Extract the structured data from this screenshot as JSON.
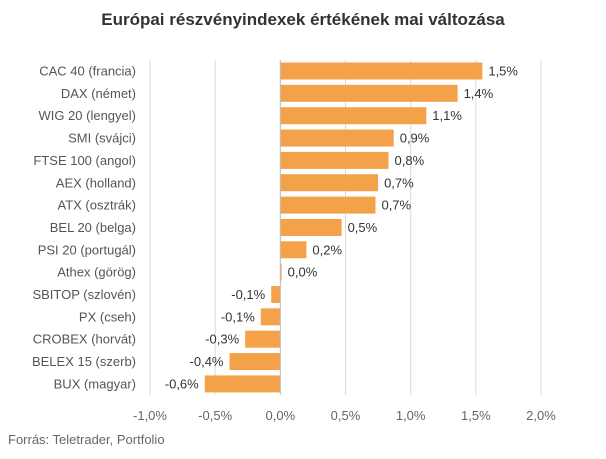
{
  "chart_data": {
    "type": "bar",
    "orientation": "horizontal",
    "title": "Európai részvényindexek értékének mai változása",
    "source": "Forrás: Teletrader, Portfolio",
    "categories": [
      "CAC 40 (francia)",
      "DAX (német)",
      "WIG 20 (lengyel)",
      "SMI (svájci)",
      "FTSE 100 (angol)",
      "AEX (holland)",
      "ATX (osztrák)",
      "BEL 20 (belga)",
      "PSI 20 (portugál)",
      "Athex (görög)",
      "SBITOP (szlovén)",
      "PX (cseh)",
      "CROBEX (horvát)",
      "BELEX 15 (szerb)",
      "BUX (magyar)"
    ],
    "values": [
      1.55,
      1.36,
      1.12,
      0.87,
      0.83,
      0.75,
      0.73,
      0.47,
      0.2,
      0.01,
      -0.07,
      -0.15,
      -0.27,
      -0.39,
      -0.58
    ],
    "value_labels": [
      "1,5%",
      "1,4%",
      "1,1%",
      "0,9%",
      "0,8%",
      "0,7%",
      "0,7%",
      "0,5%",
      "0,2%",
      "0,0%",
      "-0,1%",
      "-0,1%",
      "-0,3%",
      "-0,4%",
      "-0,6%"
    ],
    "xlim": [
      -1.0,
      2.0
    ],
    "xticks": [
      -1.0,
      -0.5,
      0.0,
      0.5,
      1.0,
      1.5,
      2.0
    ],
    "xtick_labels": [
      "-1,0%",
      "-0,5%",
      "0,0%",
      "0,5%",
      "1,0%",
      "1,5%",
      "2,0%"
    ],
    "grid": true,
    "bar_color": "#f4a24a",
    "grid_color": "#d9d9d9",
    "axis_color": "#bfbfbf"
  }
}
